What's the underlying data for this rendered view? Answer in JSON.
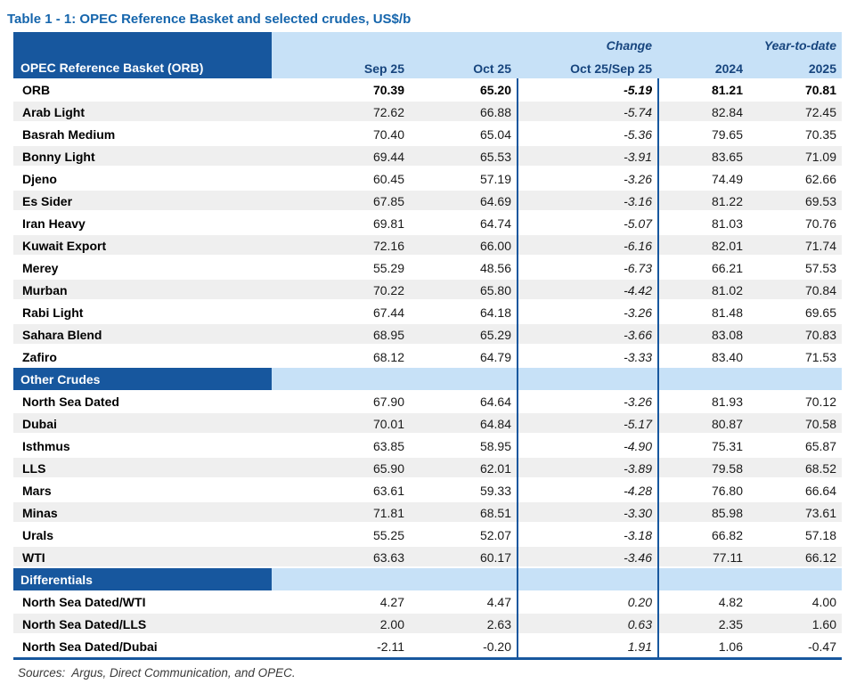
{
  "title": "Table 1 - 1: OPEC Reference Basket and selected crudes, US$/b",
  "colors": {
    "dark_blue": "#17579E",
    "light_blue": "#C7E1F7",
    "navy_text": "#17457E",
    "title_blue": "#1565AC",
    "row_alt": "#EFEFEF"
  },
  "table": {
    "header": {
      "corner_label": "OPEC Reference Basket (ORB)",
      "group_labels": {
        "change": "Change",
        "ytd": "Year-to-date"
      },
      "columns": [
        "Sep 25",
        "Oct 25",
        "Oct 25/Sep 25",
        "2024",
        "2025"
      ]
    },
    "sections": [
      {
        "name": null,
        "rows": [
          {
            "label": "ORB",
            "bold": true,
            "values": [
              "70.39",
              "65.20",
              "-5.19",
              "81.21",
              "70.81"
            ]
          },
          {
            "label": "Arab Light",
            "values": [
              "72.62",
              "66.88",
              "-5.74",
              "82.84",
              "72.45"
            ]
          },
          {
            "label": "Basrah Medium",
            "values": [
              "70.40",
              "65.04",
              "-5.36",
              "79.65",
              "70.35"
            ]
          },
          {
            "label": "Bonny Light",
            "values": [
              "69.44",
              "65.53",
              "-3.91",
              "83.65",
              "71.09"
            ]
          },
          {
            "label": "Djeno",
            "values": [
              "60.45",
              "57.19",
              "-3.26",
              "74.49",
              "62.66"
            ]
          },
          {
            "label": "Es Sider",
            "values": [
              "67.85",
              "64.69",
              "-3.16",
              "81.22",
              "69.53"
            ]
          },
          {
            "label": "Iran Heavy",
            "values": [
              "69.81",
              "64.74",
              "-5.07",
              "81.03",
              "70.76"
            ]
          },
          {
            "label": "Kuwait Export",
            "values": [
              "72.16",
              "66.00",
              "-6.16",
              "82.01",
              "71.74"
            ]
          },
          {
            "label": "Merey",
            "values": [
              "55.29",
              "48.56",
              "-6.73",
              "66.21",
              "57.53"
            ]
          },
          {
            "label": "Murban",
            "values": [
              "70.22",
              "65.80",
              "-4.42",
              "81.02",
              "70.84"
            ]
          },
          {
            "label": "Rabi Light",
            "values": [
              "67.44",
              "64.18",
              "-3.26",
              "81.48",
              "69.65"
            ]
          },
          {
            "label": "Sahara Blend",
            "values": [
              "68.95",
              "65.29",
              "-3.66",
              "83.08",
              "70.83"
            ]
          },
          {
            "label": "Zafiro",
            "values": [
              "68.12",
              "64.79",
              "-3.33",
              "83.40",
              "71.53"
            ]
          }
        ]
      },
      {
        "name": "Other Crudes",
        "rows": [
          {
            "label": "North Sea Dated",
            "values": [
              "67.90",
              "64.64",
              "-3.26",
              "81.93",
              "70.12"
            ]
          },
          {
            "label": "Dubai",
            "values": [
              "70.01",
              "64.84",
              "-5.17",
              "80.87",
              "70.58"
            ]
          },
          {
            "label": "Isthmus",
            "values": [
              "63.85",
              "58.95",
              "-4.90",
              "75.31",
              "65.87"
            ]
          },
          {
            "label": "LLS",
            "values": [
              "65.90",
              "62.01",
              "-3.89",
              "79.58",
              "68.52"
            ]
          },
          {
            "label": "Mars",
            "values": [
              "63.61",
              "59.33",
              "-4.28",
              "76.80",
              "66.64"
            ]
          },
          {
            "label": "Minas",
            "values": [
              "71.81",
              "68.51",
              "-3.30",
              "85.98",
              "73.61"
            ]
          },
          {
            "label": "Urals",
            "values": [
              "55.25",
              "52.07",
              "-3.18",
              "66.82",
              "57.18"
            ]
          },
          {
            "label": "WTI",
            "values": [
              "63.63",
              "60.17",
              "-3.46",
              "77.11",
              "66.12"
            ]
          }
        ]
      },
      {
        "name": "Differentials",
        "rows": [
          {
            "label": "North Sea Dated/WTI",
            "values": [
              "4.27",
              "4.47",
              "0.20",
              "4.82",
              "4.00"
            ]
          },
          {
            "label": "North Sea Dated/LLS",
            "values": [
              "2.00",
              "2.63",
              "0.63",
              "2.35",
              "1.60"
            ]
          },
          {
            "label": "North Sea Dated/Dubai",
            "values": [
              "-2.11",
              "-0.20",
              "1.91",
              "1.06",
              "-0.47"
            ]
          }
        ]
      }
    ]
  },
  "footer": {
    "sources": "Sources:  Argus, Direct Communication, and OPEC."
  }
}
